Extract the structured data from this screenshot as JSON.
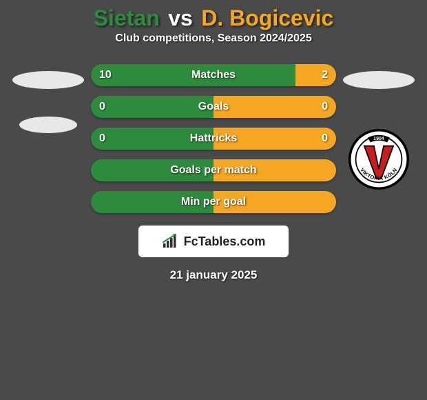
{
  "title": {
    "player1": "Sietan",
    "vs": "vs",
    "player2": "D. Bogicevic",
    "player1_color": "#2e8b3d",
    "vs_color": "#ffffff",
    "player2_color": "#f5a623"
  },
  "subtitle": "Club competitions, Season 2024/2025",
  "bars": [
    {
      "label": "Matches",
      "left_val": "10",
      "right_val": "2",
      "left_pct": 83.3,
      "right_pct": 16.7,
      "left_color": "#2e8b3d",
      "right_color": "#f5a623"
    },
    {
      "label": "Goals",
      "left_val": "0",
      "right_val": "0",
      "left_pct": 50,
      "right_pct": 50,
      "left_color": "#2e8b3d",
      "right_color": "#f5a623"
    },
    {
      "label": "Hattricks",
      "left_val": "0",
      "right_val": "0",
      "left_pct": 50,
      "right_pct": 50,
      "left_color": "#2e8b3d",
      "right_color": "#f5a623"
    },
    {
      "label": "Goals per match",
      "left_val": "",
      "right_val": "",
      "left_pct": 50,
      "right_pct": 50,
      "left_color": "#2e8b3d",
      "right_color": "#f5a623"
    },
    {
      "label": "Min per goal",
      "left_val": "",
      "right_val": "",
      "left_pct": 50,
      "right_pct": 50,
      "left_color": "#2e8b3d",
      "right_color": "#f5a623"
    }
  ],
  "club_logo": {
    "name": "Viktoria Köln",
    "year": "1904",
    "outer_bg": "#ffffff",
    "outer_border": "#000000",
    "v_color": "#c81e1e",
    "text_color": "#000000"
  },
  "fctables": {
    "text": "FcTables.com",
    "bar_color": "#2f2f2f",
    "arrow_color": "#2e8b3d"
  },
  "date": "21 january 2025",
  "background_color": "#4a4a4a"
}
